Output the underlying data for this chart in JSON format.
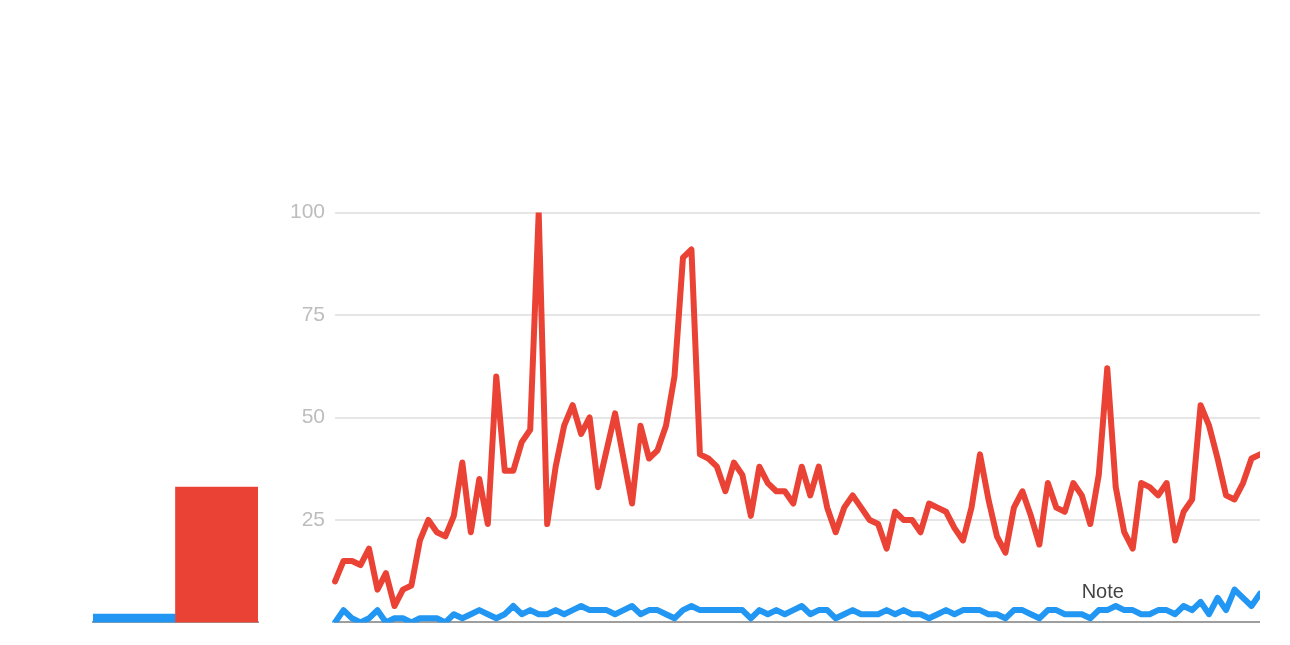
{
  "chart_data": [
    {
      "type": "bar",
      "categories": [
        null,
        null
      ],
      "values": [
        2,
        33
      ],
      "colors": [
        "#2196f3",
        "#ea4335"
      ],
      "ylim": [
        0,
        100
      ],
      "tick_labels": false,
      "grid": false,
      "legend": false
    },
    {
      "type": "line",
      "categories": [
        null,
        null,
        null,
        null,
        null,
        null,
        null,
        null,
        null,
        null,
        null,
        null,
        null,
        null,
        null,
        null,
        null,
        null,
        null,
        null,
        null,
        null,
        null,
        null,
        null,
        null,
        null,
        null,
        null,
        null,
        null,
        null,
        null,
        null,
        null,
        null,
        null,
        null,
        null,
        null,
        null,
        null,
        null,
        null,
        null,
        null,
        null,
        null,
        null,
        null,
        null,
        null,
        null,
        null,
        null,
        null,
        null,
        null,
        null,
        null,
        null,
        null,
        null,
        null,
        null,
        null,
        null,
        null,
        null,
        null,
        null,
        null,
        null,
        null,
        null,
        null,
        null,
        null,
        null,
        null,
        null,
        null,
        null,
        null,
        null,
        null,
        null,
        null,
        null,
        null,
        null,
        null,
        null,
        null,
        null,
        null,
        null,
        null,
        null,
        null,
        null,
        null,
        null,
        null,
        null,
        null,
        null,
        null,
        null,
        null
      ],
      "series": [
        {
          "color": "#2196f3",
          "values": [
            0,
            3,
            1,
            0,
            1,
            3,
            0,
            1,
            1,
            0,
            1,
            1,
            1,
            0,
            2,
            1,
            2,
            3,
            2,
            1,
            2,
            4,
            2,
            3,
            2,
            2,
            3,
            2,
            3,
            4,
            3,
            3,
            3,
            2,
            3,
            4,
            2,
            3,
            3,
            2,
            1,
            3,
            4,
            3,
            3,
            3,
            3,
            3,
            3,
            1,
            3,
            2,
            3,
            2,
            3,
            4,
            2,
            3,
            3,
            1,
            2,
            3,
            2,
            2,
            2,
            3,
            2,
            3,
            2,
            2,
            1,
            2,
            3,
            2,
            3,
            3,
            3,
            2,
            2,
            1,
            3,
            3,
            2,
            1,
            3,
            3,
            2,
            2,
            2,
            1,
            3,
            3,
            4,
            3,
            3,
            2,
            2,
            3,
            3,
            2,
            4,
            3,
            5,
            2,
            6,
            3,
            8,
            6,
            4,
            7
          ]
        },
        {
          "color": "#ea4335",
          "values": [
            10,
            15,
            15,
            14,
            18,
            8,
            12,
            4,
            8,
            9,
            20,
            25,
            22,
            21,
            26,
            39,
            22,
            35,
            24,
            60,
            37,
            37,
            44,
            47,
            100,
            24,
            38,
            48,
            53,
            46,
            50,
            33,
            42,
            51,
            40,
            29,
            48,
            40,
            42,
            48,
            60,
            89,
            91,
            41,
            40,
            38,
            32,
            39,
            36,
            26,
            38,
            34,
            32,
            32,
            29,
            38,
            31,
            38,
            28,
            22,
            28,
            31,
            28,
            25,
            24,
            18,
            27,
            25,
            25,
            22,
            29,
            28,
            27,
            23,
            20,
            28,
            41,
            30,
            21,
            17,
            28,
            32,
            26,
            19,
            34,
            28,
            27,
            34,
            31,
            24,
            36,
            62,
            33,
            22,
            18,
            34,
            33,
            31,
            34,
            20,
            27,
            30,
            53,
            48,
            40,
            31,
            30,
            34,
            40,
            41
          ]
        }
      ],
      "ylim": [
        0,
        100
      ],
      "yticks": [
        {
          "value": 0,
          "label": null
        },
        25,
        50,
        75,
        100
      ],
      "tick_labels": "y",
      "grid": "y",
      "legend": false,
      "marker": "none",
      "line_style": "solid",
      "annotations": [
        "Note"
      ]
    }
  ]
}
